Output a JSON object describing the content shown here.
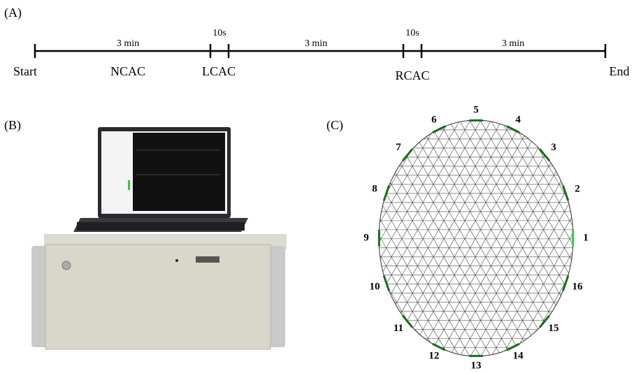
{
  "panels": {
    "a": "(A)",
    "b": "(B)",
    "c": "(C)"
  },
  "timeline": {
    "events": [
      "Start",
      "NCAC",
      "LCAC",
      "RCAC",
      "End"
    ],
    "durations": [
      "3 min",
      "10s",
      "3 min",
      "10s",
      "3 min"
    ]
  },
  "electrodes": [
    "1",
    "2",
    "3",
    "4",
    "5",
    "6",
    "7",
    "8",
    "9",
    "10",
    "11",
    "12",
    "13",
    "14",
    "15",
    "16"
  ]
}
